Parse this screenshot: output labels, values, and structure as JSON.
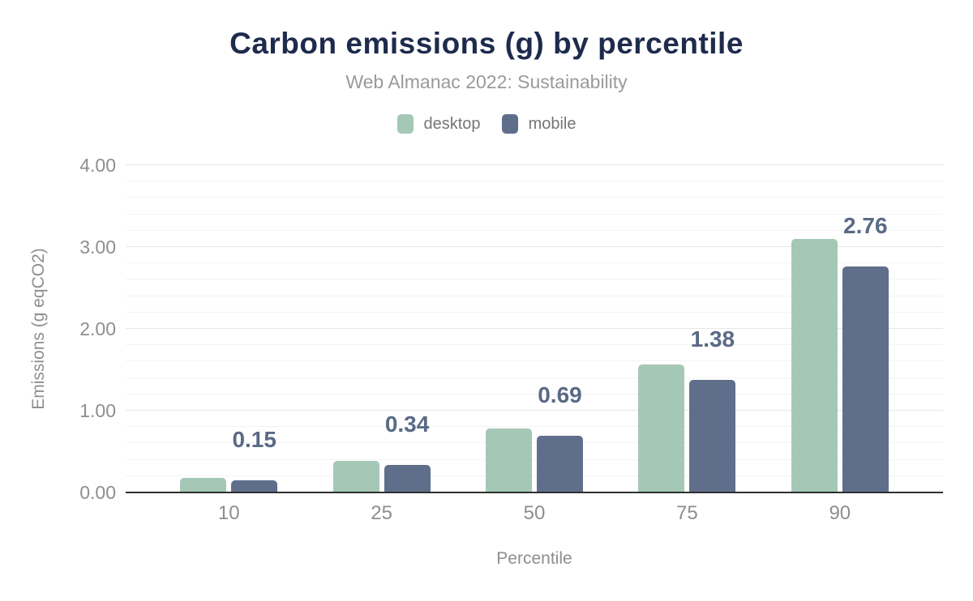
{
  "chart_data": {
    "type": "bar",
    "title": "Carbon emissions (g) by percentile",
    "subtitle": "Web Almanac 2022: Sustainability",
    "xlabel": "Percentile",
    "ylabel": "Emissions (g eqCO2)",
    "categories": [
      "10",
      "25",
      "50",
      "75",
      "90"
    ],
    "series": [
      {
        "name": "desktop",
        "color": "#a5c8b6",
        "values": [
          0.18,
          0.39,
          0.78,
          1.56,
          3.1
        ]
      },
      {
        "name": "mobile",
        "color": "#5f6f8b",
        "values": [
          0.15,
          0.34,
          0.69,
          1.38,
          2.76
        ]
      }
    ],
    "data_labels": {
      "on_series": "mobile",
      "labels": [
        "0.15",
        "0.34",
        "0.69",
        "1.38",
        "2.76"
      ],
      "color": "#5a6a85"
    },
    "ylim": [
      0,
      4
    ],
    "yticks": [
      {
        "value": 4,
        "label": "4.00"
      },
      {
        "value": 3,
        "label": "3.00"
      },
      {
        "value": 2,
        "label": "2.00"
      },
      {
        "value": 1,
        "label": "1.00"
      },
      {
        "value": 0,
        "label": "0.00"
      }
    ],
    "grid": {
      "on": true,
      "minor_step": 0.2,
      "major_step": 1.0
    },
    "legend": {
      "position": "top",
      "entries": [
        "desktop",
        "mobile"
      ]
    }
  },
  "colors": {
    "background": "#ffffff",
    "title": "#1e2b4d",
    "subtitle": "#9a9a9a",
    "legend_text": "#757575",
    "axis_text": "#8e8e8e",
    "axis_line": "#2f2f2f",
    "grid_major": "#e6e6e6",
    "grid_minor": "#f3f3f3",
    "desktop_bar": "#a5c8b6",
    "mobile_bar": "#5f6f8b",
    "data_label": "#5a6a85"
  }
}
